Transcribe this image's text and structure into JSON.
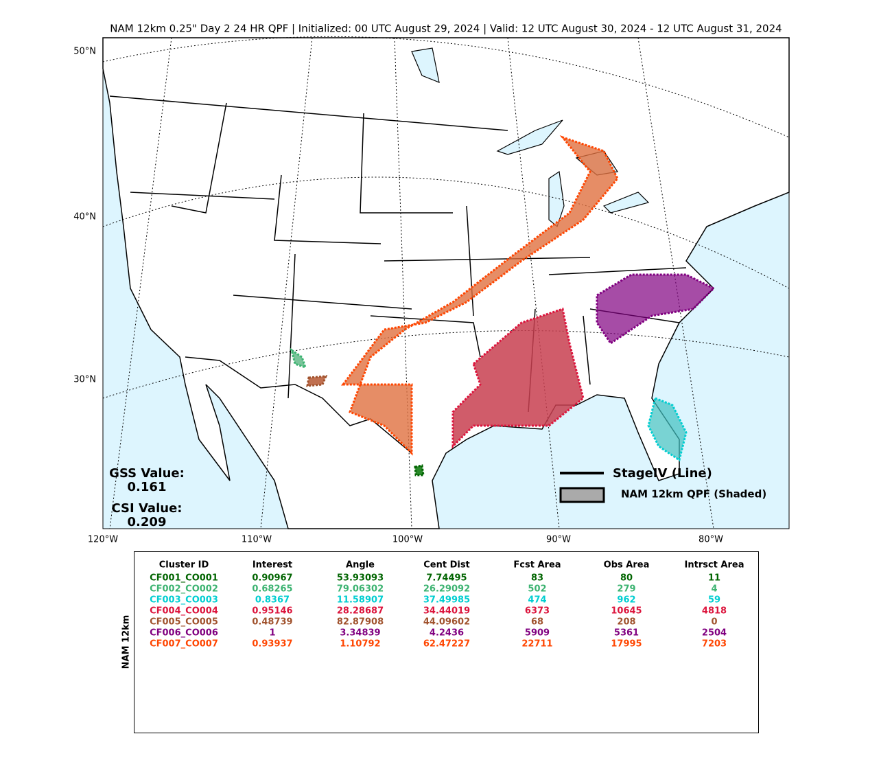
{
  "title": "NAM 12km 0.25\" Day 2 24 HR QPF | Initialized: 00 UTC August 29, 2024 | Valid: 12 UTC August 30, 2024 - 12 UTC August 31, 2024",
  "map": {
    "lat_labels": [
      "50°N",
      "40°N",
      "30°N"
    ],
    "lon_labels": [
      "120°W",
      "110°W",
      "100°W",
      "90°W",
      "80°W"
    ],
    "gss_label": "GSS Value:",
    "gss_value": "0.161",
    "csi_label": "CSI Value:",
    "csi_value": "0.209",
    "legend": [
      "StageIV (Line)",
      "NAM 12km QPF (Shaded)"
    ]
  },
  "table": {
    "side_label": "NAM 12km",
    "headers": [
      "Cluster ID",
      "Interest",
      "Angle",
      "Cent Dist",
      "Fcst Area",
      "Obs Area",
      "Intrsct Area"
    ],
    "rows": [
      {
        "color": "#006400",
        "cells": [
          "CF001_CO001",
          "0.90967",
          "53.93093",
          "7.74495",
          "83",
          "80",
          "11"
        ]
      },
      {
        "color": "#3cb371",
        "cells": [
          "CF002_CO002",
          "0.68265",
          "79.06302",
          "26.29092",
          "502",
          "279",
          "4"
        ]
      },
      {
        "color": "#00ced1",
        "cells": [
          "CF003_CO003",
          "0.8367",
          "11.58907",
          "37.49985",
          "474",
          "962",
          "59"
        ]
      },
      {
        "color": "#dc143c",
        "cells": [
          "CF004_CO004",
          "0.95146",
          "28.28687",
          "34.44019",
          "6373",
          "10645",
          "4818"
        ]
      },
      {
        "color": "#a0522d",
        "cells": [
          "CF005_CO005",
          "0.48739",
          "82.87908",
          "44.09602",
          "68",
          "208",
          "0"
        ]
      },
      {
        "color": "#800080",
        "cells": [
          "CF006_CO006",
          "1",
          "3.34839",
          "4.2436",
          "5909",
          "5361",
          "2504"
        ]
      },
      {
        "color": "#ff4500",
        "cells": [
          "CF007_CO007",
          "0.93937",
          "1.10792",
          "62.47227",
          "22711",
          "17995",
          "7203"
        ]
      }
    ]
  }
}
